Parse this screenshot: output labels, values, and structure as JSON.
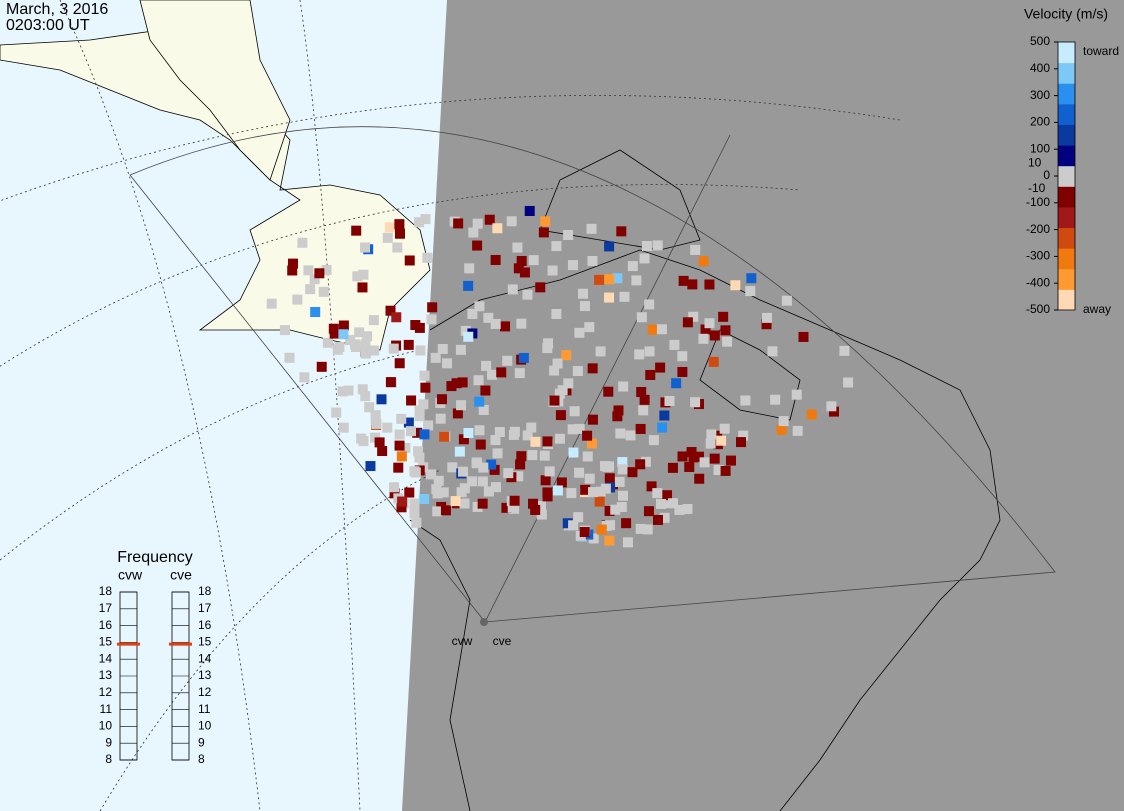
{
  "header": {
    "date": "March, 3 2016",
    "time": "0203:00 UT"
  },
  "velocity_scale": {
    "title": "Velocity (m/s)",
    "toward": "toward",
    "away": "away",
    "ticks": [
      500,
      400,
      300,
      200,
      100,
      0,
      -100,
      -200,
      -300,
      -400,
      -500
    ],
    "inner_ticks": [
      10,
      -10
    ],
    "colors": [
      "#ffd9b3",
      "#ff9a33",
      "#f07a10",
      "#d04a10",
      "#a01818",
      "#800000",
      "#cccccc",
      "#000080",
      "#0a3aa0",
      "#1060d0",
      "#2a90f0",
      "#7ec8f8",
      "#c8ecff"
    ]
  },
  "frequency": {
    "title": "Frequency",
    "ticks": [
      18,
      17,
      16,
      15,
      14,
      13,
      12,
      11,
      10,
      9,
      8
    ],
    "radars": [
      {
        "name": "cvw",
        "value": 14.9
      },
      {
        "name": "cve",
        "value": 14.9
      }
    ]
  },
  "stations": [
    "cvw",
    "cve"
  ]
}
